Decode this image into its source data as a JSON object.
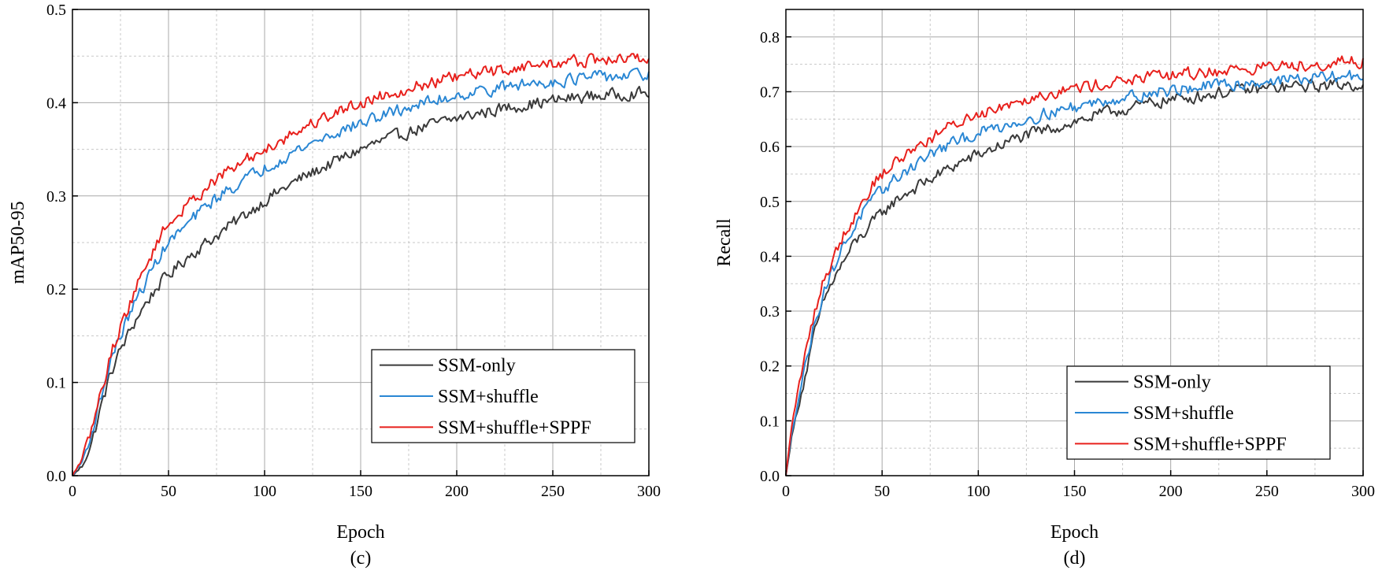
{
  "chart_data": [
    {
      "id": "c",
      "type": "line",
      "caption": "(c)",
      "xlabel": "Epoch",
      "ylabel": "mAP50-95",
      "xlim": [
        0,
        300
      ],
      "ylim": [
        0,
        0.5
      ],
      "xticks": [
        0,
        50,
        100,
        150,
        200,
        250,
        300
      ],
      "yticks": [
        0.0,
        0.1,
        0.2,
        0.3,
        0.4,
        0.5
      ],
      "xtick_labels": [
        "0",
        "50",
        "100",
        "150",
        "200",
        "250",
        "300"
      ],
      "ytick_labels": [
        "0.0",
        "0.1",
        "0.2",
        "0.3",
        "0.4",
        "0.5"
      ],
      "grid": true,
      "legend_position": "bottom-right",
      "series": [
        {
          "name": "SSM-only",
          "color": "#3a3a3a",
          "x": [
            0,
            5,
            10,
            15,
            20,
            25,
            30,
            35,
            40,
            45,
            50,
            60,
            70,
            80,
            90,
            100,
            110,
            120,
            130,
            140,
            150,
            160,
            170,
            180,
            190,
            200,
            210,
            220,
            230,
            240,
            250,
            260,
            270,
            280,
            290,
            300
          ],
          "y": [
            0.0,
            0.01,
            0.035,
            0.075,
            0.11,
            0.135,
            0.155,
            0.175,
            0.19,
            0.205,
            0.215,
            0.235,
            0.25,
            0.265,
            0.28,
            0.295,
            0.308,
            0.32,
            0.33,
            0.34,
            0.35,
            0.358,
            0.365,
            0.372,
            0.378,
            0.383,
            0.388,
            0.392,
            0.396,
            0.399,
            0.402,
            0.405,
            0.407,
            0.408,
            0.41,
            0.41
          ]
        },
        {
          "name": "SSM+shuffle",
          "color": "#2a87d4",
          "x": [
            0,
            5,
            10,
            15,
            20,
            25,
            30,
            35,
            40,
            45,
            50,
            60,
            70,
            80,
            90,
            100,
            110,
            120,
            130,
            140,
            150,
            160,
            170,
            180,
            190,
            200,
            210,
            220,
            230,
            240,
            250,
            260,
            270,
            280,
            290,
            300
          ],
          "y": [
            0.0,
            0.015,
            0.045,
            0.085,
            0.125,
            0.15,
            0.175,
            0.195,
            0.215,
            0.235,
            0.25,
            0.27,
            0.29,
            0.305,
            0.318,
            0.33,
            0.342,
            0.352,
            0.362,
            0.37,
            0.378,
            0.385,
            0.392,
            0.398,
            0.403,
            0.408,
            0.412,
            0.415,
            0.418,
            0.421,
            0.423,
            0.425,
            0.427,
            0.428,
            0.429,
            0.43
          ]
        },
        {
          "name": "SSM+shuffle+SPPF",
          "color": "#e8201c",
          "x": [
            0,
            5,
            10,
            15,
            20,
            25,
            30,
            35,
            40,
            45,
            50,
            60,
            70,
            80,
            90,
            100,
            110,
            120,
            130,
            140,
            150,
            160,
            170,
            180,
            190,
            200,
            210,
            220,
            230,
            240,
            250,
            260,
            270,
            280,
            290,
            300
          ],
          "y": [
            0.0,
            0.018,
            0.05,
            0.09,
            0.13,
            0.16,
            0.185,
            0.21,
            0.232,
            0.255,
            0.27,
            0.29,
            0.31,
            0.325,
            0.338,
            0.35,
            0.362,
            0.373,
            0.383,
            0.392,
            0.4,
            0.407,
            0.413,
            0.418,
            0.423,
            0.427,
            0.431,
            0.434,
            0.437,
            0.44,
            0.442,
            0.444,
            0.445,
            0.446,
            0.447,
            0.448
          ]
        }
      ]
    },
    {
      "id": "d",
      "type": "line",
      "caption": "(d)",
      "xlabel": "Epoch",
      "ylabel": "Recall",
      "xlim": [
        0,
        300
      ],
      "ylim": [
        0,
        0.85
      ],
      "xticks": [
        0,
        50,
        100,
        150,
        200,
        250,
        300
      ],
      "yticks": [
        0.0,
        0.1,
        0.2,
        0.3,
        0.4,
        0.5,
        0.6,
        0.7,
        0.8
      ],
      "xtick_labels": [
        "0",
        "50",
        "100",
        "150",
        "200",
        "250",
        "300"
      ],
      "ytick_labels": [
        "0.0",
        "0.1",
        "0.2",
        "0.3",
        "0.4",
        "0.5",
        "0.6",
        "0.7",
        "0.8"
      ],
      "grid": true,
      "legend_position": "bottom-right",
      "series": [
        {
          "name": "SSM-only",
          "color": "#3a3a3a",
          "x": [
            0,
            3,
            6,
            10,
            15,
            20,
            25,
            30,
            35,
            40,
            45,
            50,
            60,
            70,
            80,
            90,
            100,
            110,
            120,
            130,
            140,
            150,
            160,
            170,
            180,
            190,
            200,
            210,
            220,
            230,
            240,
            250,
            260,
            270,
            280,
            290,
            300
          ],
          "y": [
            0.0,
            0.07,
            0.12,
            0.18,
            0.26,
            0.32,
            0.36,
            0.39,
            0.42,
            0.44,
            0.46,
            0.48,
            0.51,
            0.53,
            0.55,
            0.57,
            0.585,
            0.6,
            0.615,
            0.625,
            0.635,
            0.645,
            0.655,
            0.665,
            0.67,
            0.68,
            0.685,
            0.69,
            0.695,
            0.7,
            0.703,
            0.706,
            0.708,
            0.71,
            0.712,
            0.713,
            0.713
          ]
        },
        {
          "name": "SSM+shuffle",
          "color": "#2a87d4",
          "x": [
            0,
            3,
            6,
            10,
            15,
            20,
            25,
            30,
            35,
            40,
            45,
            50,
            60,
            70,
            80,
            90,
            100,
            110,
            120,
            130,
            140,
            150,
            160,
            170,
            180,
            190,
            200,
            210,
            220,
            230,
            240,
            250,
            260,
            270,
            280,
            290,
            300
          ],
          "y": [
            0.0,
            0.08,
            0.13,
            0.2,
            0.28,
            0.34,
            0.38,
            0.42,
            0.45,
            0.48,
            0.5,
            0.52,
            0.55,
            0.575,
            0.595,
            0.61,
            0.625,
            0.635,
            0.645,
            0.655,
            0.665,
            0.672,
            0.68,
            0.687,
            0.692,
            0.698,
            0.702,
            0.706,
            0.71,
            0.713,
            0.716,
            0.719,
            0.722,
            0.724,
            0.726,
            0.728,
            0.73
          ]
        },
        {
          "name": "SSM+shuffle+SPPF",
          "color": "#e8201c",
          "x": [
            0,
            3,
            6,
            10,
            15,
            20,
            25,
            30,
            35,
            40,
            45,
            50,
            60,
            70,
            80,
            90,
            100,
            110,
            120,
            130,
            140,
            150,
            160,
            170,
            180,
            190,
            200,
            210,
            220,
            230,
            240,
            250,
            260,
            270,
            280,
            290,
            300
          ],
          "y": [
            0.0,
            0.09,
            0.15,
            0.22,
            0.3,
            0.36,
            0.4,
            0.44,
            0.47,
            0.5,
            0.53,
            0.55,
            0.58,
            0.605,
            0.625,
            0.645,
            0.66,
            0.672,
            0.684,
            0.693,
            0.7,
            0.706,
            0.712,
            0.718,
            0.722,
            0.726,
            0.73,
            0.733,
            0.736,
            0.739,
            0.742,
            0.745,
            0.748,
            0.75,
            0.752,
            0.754,
            0.755
          ]
        }
      ]
    }
  ]
}
